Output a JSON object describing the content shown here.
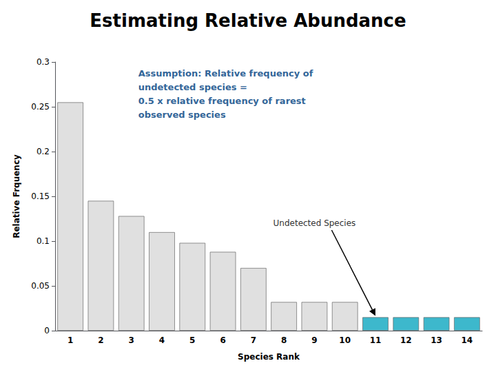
{
  "chart_data": {
    "type": "bar",
    "title": "Estimating Relative Abundance",
    "xlabel": "Species Rank",
    "ylabel": "Relative Frquency",
    "categories": [
      "1",
      "2",
      "3",
      "4",
      "5",
      "6",
      "7",
      "8",
      "9",
      "10",
      "11",
      "12",
      "13",
      "14"
    ],
    "values": [
      0.255,
      0.145,
      0.128,
      0.11,
      0.098,
      0.088,
      0.07,
      0.032,
      0.032,
      0.032,
      0.015,
      0.015,
      0.015,
      0.015
    ],
    "colors": [
      "#E0E0E0",
      "#E0E0E0",
      "#E0E0E0",
      "#E0E0E0",
      "#E0E0E0",
      "#E0E0E0",
      "#E0E0E0",
      "#E0E0E0",
      "#E0E0E0",
      "#E0E0E0",
      "#3DB8CC",
      "#3DB8CC",
      "#3DB8CC",
      "#3DB8CC"
    ],
    "ylim": [
      0,
      0.3
    ],
    "yticks": [
      0,
      0.05,
      0.1,
      0.15,
      0.2,
      0.25,
      0.3
    ],
    "grid": false,
    "annotations": [
      "Assumption: Relative frequency of\nundetected species =\n0.5 x relative frequency of rarest\nobserved species",
      "Undetected Species"
    ]
  }
}
